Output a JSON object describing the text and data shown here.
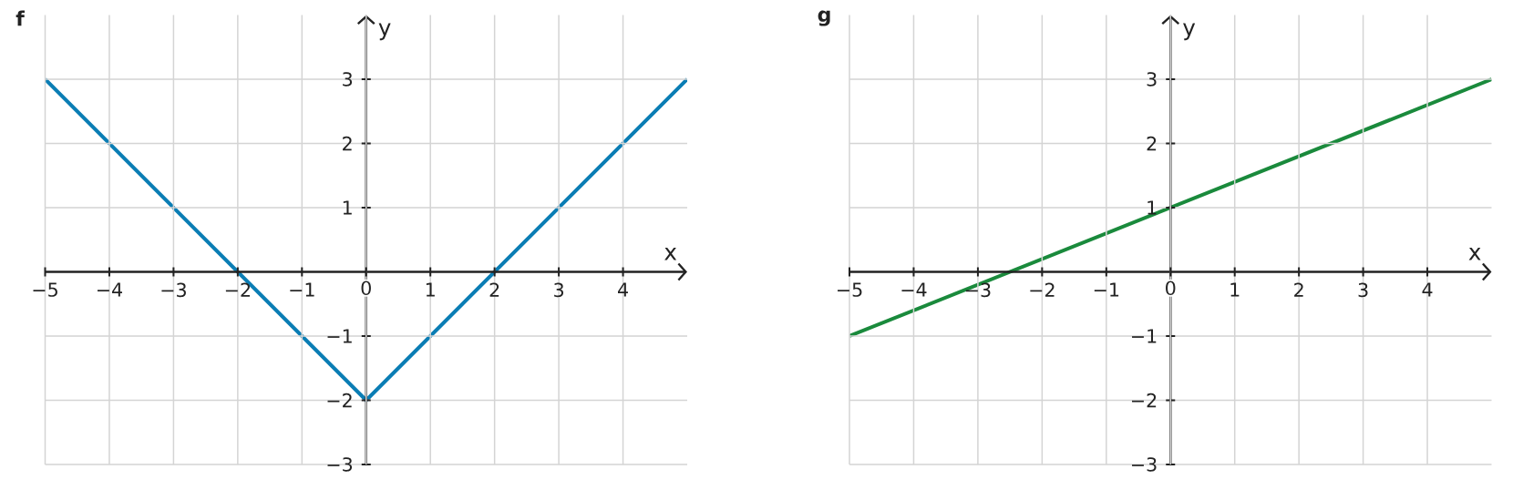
{
  "chart_data": [
    {
      "type": "line",
      "title": "f",
      "xlabel": "x",
      "ylabel": "y",
      "x": [
        -5,
        0,
        5
      ],
      "series": [
        {
          "color": "#0a7db4",
          "values": [
            3,
            -2,
            3
          ]
        }
      ],
      "xlim": [
        -5,
        5
      ],
      "ylim": [
        -3,
        4
      ],
      "xticks": [
        {
          "value": -5,
          "label": "−5"
        },
        {
          "value": -4,
          "label": "−4"
        },
        {
          "value": -3,
          "label": "−3"
        },
        {
          "value": -2,
          "label": "−2"
        },
        {
          "value": -1,
          "label": "−1"
        },
        0,
        1,
        2,
        3,
        4
      ],
      "yticks": [
        {
          "value": -3,
          "label": "−3"
        },
        {
          "value": -2,
          "label": "−2"
        },
        {
          "value": -1,
          "label": "−1"
        },
        1,
        2,
        3
      ],
      "grid": true
    },
    {
      "type": "line",
      "title": "g",
      "xlabel": "x",
      "ylabel": "y",
      "x": [
        -5,
        5
      ],
      "series": [
        {
          "color": "#1a8a3c",
          "values": [
            -1,
            3
          ]
        }
      ],
      "xlim": [
        -5,
        5
      ],
      "ylim": [
        -3,
        4
      ],
      "xticks": [
        {
          "value": -5,
          "label": "−5"
        },
        {
          "value": -4,
          "label": "−4"
        },
        {
          "value": -3,
          "label": "−3"
        },
        {
          "value": -2,
          "label": "−2"
        },
        {
          "value": -1,
          "label": "−1"
        },
        0,
        1,
        2,
        3,
        4
      ],
      "yticks": [
        {
          "value": -3,
          "label": "−3"
        },
        {
          "value": -2,
          "label": "−2"
        },
        {
          "value": -1,
          "label": "−1"
        },
        1,
        2,
        3
      ],
      "grid": true
    }
  ]
}
